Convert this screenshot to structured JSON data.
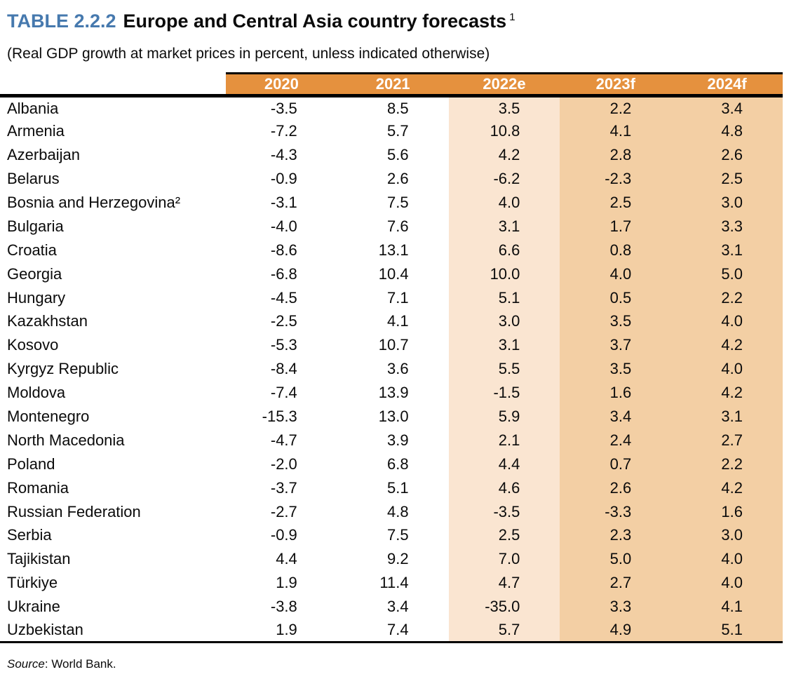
{
  "title": {
    "label": "TABLE 2.2.2",
    "text": "Europe and Central Asia country forecasts",
    "footnote_ref": "1"
  },
  "subtitle": "(Real GDP growth at market prices in percent, unless indicated otherwise)",
  "table": {
    "columns": [
      "2020",
      "2021",
      "2022e",
      "2023f",
      "2024f"
    ],
    "rows": [
      {
        "country": "Albania",
        "values": [
          "-3.5",
          "8.5",
          "3.5",
          "2.2",
          "3.4"
        ]
      },
      {
        "country": "Armenia",
        "values": [
          "-7.2",
          "5.7",
          "10.8",
          "4.1",
          "4.8"
        ]
      },
      {
        "country": "Azerbaijan",
        "values": [
          "-4.3",
          "5.6",
          "4.2",
          "2.8",
          "2.6"
        ]
      },
      {
        "country": "Belarus",
        "values": [
          "-0.9",
          "2.6",
          "-6.2",
          "-2.3",
          "2.5"
        ]
      },
      {
        "country": "Bosnia and Herzegovina²",
        "values": [
          "-3.1",
          "7.5",
          "4.0",
          "2.5",
          "3.0"
        ]
      },
      {
        "country": "Bulgaria",
        "values": [
          "-4.0",
          "7.6",
          "3.1",
          "1.7",
          "3.3"
        ]
      },
      {
        "country": "Croatia",
        "values": [
          "-8.6",
          "13.1",
          "6.6",
          "0.8",
          "3.1"
        ]
      },
      {
        "country": "Georgia",
        "values": [
          "-6.8",
          "10.4",
          "10.0",
          "4.0",
          "5.0"
        ]
      },
      {
        "country": "Hungary",
        "values": [
          "-4.5",
          "7.1",
          "5.1",
          "0.5",
          "2.2"
        ]
      },
      {
        "country": "Kazakhstan",
        "values": [
          "-2.5",
          "4.1",
          "3.0",
          "3.5",
          "4.0"
        ]
      },
      {
        "country": "Kosovo",
        "values": [
          "-5.3",
          "10.7",
          "3.1",
          "3.7",
          "4.2"
        ]
      },
      {
        "country": "Kyrgyz Republic",
        "values": [
          "-8.4",
          "3.6",
          "5.5",
          "3.5",
          "4.0"
        ]
      },
      {
        "country": "Moldova",
        "values": [
          "-7.4",
          "13.9",
          "-1.5",
          "1.6",
          "4.2"
        ]
      },
      {
        "country": "Montenegro",
        "values": [
          "-15.3",
          "13.0",
          "5.9",
          "3.4",
          "3.1"
        ]
      },
      {
        "country": "North Macedonia",
        "values": [
          "-4.7",
          "3.9",
          "2.1",
          "2.4",
          "2.7"
        ]
      },
      {
        "country": "Poland",
        "values": [
          "-2.0",
          "6.8",
          "4.4",
          "0.7",
          "2.2"
        ]
      },
      {
        "country": "Romania",
        "values": [
          "-3.7",
          "5.1",
          "4.6",
          "2.6",
          "4.2"
        ]
      },
      {
        "country": "Russian Federation",
        "values": [
          "-2.7",
          "4.8",
          "-3.5",
          "-3.3",
          "1.6"
        ]
      },
      {
        "country": "Serbia",
        "values": [
          "-0.9",
          "7.5",
          "2.5",
          "2.3",
          "3.0"
        ]
      },
      {
        "country": "Tajikistan",
        "values": [
          "4.4",
          "9.2",
          "7.0",
          "5.0",
          "4.0"
        ]
      },
      {
        "country": "Türkiye",
        "values": [
          "1.9",
          "11.4",
          "4.7",
          "2.7",
          "4.0"
        ]
      },
      {
        "country": "Ukraine",
        "values": [
          "-3.8",
          "3.4",
          "-35.0",
          "3.3",
          "4.1"
        ]
      },
      {
        "country": "Uzbekistan",
        "values": [
          "1.9",
          "7.4",
          "5.7",
          "4.9",
          "5.1"
        ]
      }
    ]
  },
  "footer": {
    "source_label": "Source",
    "source_rest": ": World Bank."
  },
  "colors": {
    "header_bg": "#E5913E",
    "estimate_col_bg": "#FAE5D1",
    "forecast_col_bg": "#F3CFA4",
    "title_accent": "#4679AE"
  }
}
